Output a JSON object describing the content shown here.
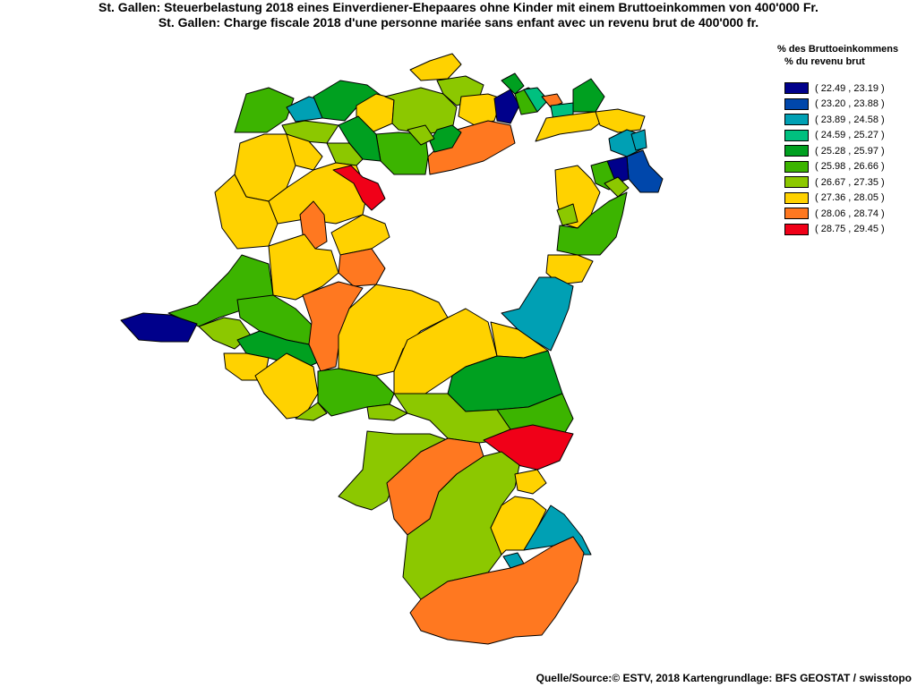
{
  "title_de": "St. Gallen: Steuerbelastung 2018 eines Einverdiener-Ehepaares ohne Kinder mit einem Bruttoeinkommen von 400'000 Fr.",
  "title_fr": "St. Gallen: Charge fiscale 2018 d'une personne mariée sans enfant avec un revenu brut de 400'000 fr.",
  "legend": {
    "title_de": "% des Bruttoeinkommens",
    "title_fr": "% du revenu brut",
    "classes": [
      {
        "label": "( 22.49 , 23.19 )",
        "color": "#00008B"
      },
      {
        "label": "( 23.20 , 23.88 )",
        "color": "#0047AB"
      },
      {
        "label": "( 23.89 , 24.58 )",
        "color": "#00A0B4"
      },
      {
        "label": "( 24.59 , 25.27 )",
        "color": "#00C07F"
      },
      {
        "label": "( 25.28 , 25.97 )",
        "color": "#00A020"
      },
      {
        "label": "( 25.98 , 26.66 )",
        "color": "#3CB400"
      },
      {
        "label": "( 26.67 , 27.35 )",
        "color": "#8CC800"
      },
      {
        "label": "( 27.36 , 28.05 )",
        "color": "#FFD200"
      },
      {
        "label": "( 28.06 , 28.74 )",
        "color": "#FF7820"
      },
      {
        "label": "( 28.75 , 29.45 )",
        "color": "#F00018"
      }
    ]
  },
  "source": "Quelle/Source:© ESTV, 2018 Kartengrundlage: BFS GEOSTAT / swisstopo"
}
